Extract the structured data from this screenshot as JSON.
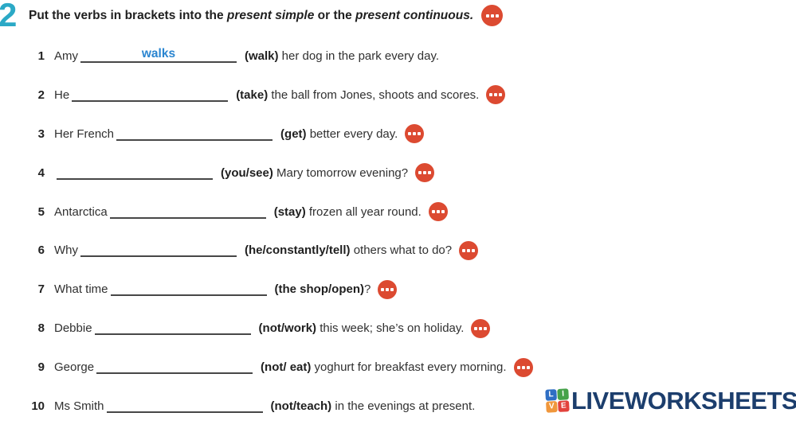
{
  "exercise": {
    "number": "2",
    "title": {
      "t1": "Put the verbs in brackets into the ",
      "t2": "present simple",
      "t3": " or the ",
      "t4": "present continuous."
    }
  },
  "items": [
    {
      "num": "1",
      "pre": "Amy",
      "answer": "walks",
      "verb": "(walk)",
      "post": " her dog in the park every day.",
      "icon": false
    },
    {
      "num": "2",
      "pre": "He",
      "answer": "",
      "verb": "(take)",
      "post": " the ball from Jones, shoots and scores.",
      "icon": true
    },
    {
      "num": "3",
      "pre": "Her French",
      "answer": "",
      "verb": "(get)",
      "post": " better every day.",
      "icon": true
    },
    {
      "num": "4",
      "pre": "",
      "answer": "",
      "verb": "(you/see)",
      "post": " Mary tomorrow evening?",
      "icon": true
    },
    {
      "num": "5",
      "pre": "Antarctica",
      "answer": "",
      "verb": "(stay)",
      "post": " frozen all year round.",
      "icon": true
    },
    {
      "num": "6",
      "pre": "Why",
      "answer": "",
      "verb": "(he/constantly/tell)",
      "post": " others what to do?",
      "icon": true
    },
    {
      "num": "7",
      "pre": "What time",
      "answer": "",
      "verb": "(the shop/open)",
      "post": "?",
      "icon": true
    },
    {
      "num": "8",
      "pre": "Debbie",
      "answer": "",
      "verb": "(not/work)",
      "post": " this week; she’s on holiday.",
      "icon": true
    },
    {
      "num": "9",
      "pre": "George",
      "answer": "",
      "verb": "(not/ eat)",
      "post": " yoghurt for breakfast every morning.",
      "icon": true
    },
    {
      "num": "10",
      "pre": "Ms Smith",
      "answer": "",
      "verb": "(not/teach)",
      "post": " in the evenings at present.",
      "icon": false
    }
  ],
  "logo": {
    "text": "LIVEWORKSHEETS",
    "tiles": [
      {
        "letter": "L",
        "color": "#2f6fc4"
      },
      {
        "letter": "I",
        "color": "#46a24a"
      },
      {
        "letter": "V",
        "color": "#f0973c"
      },
      {
        "letter": "E",
        "color": "#e2423c"
      }
    ]
  },
  "colors": {
    "accent_teal": "#2ba9c6",
    "icon_red": "#dc4a31",
    "answer_blue": "#2a85d0",
    "logo_navy": "#1c3e6d",
    "text": "#303030"
  }
}
